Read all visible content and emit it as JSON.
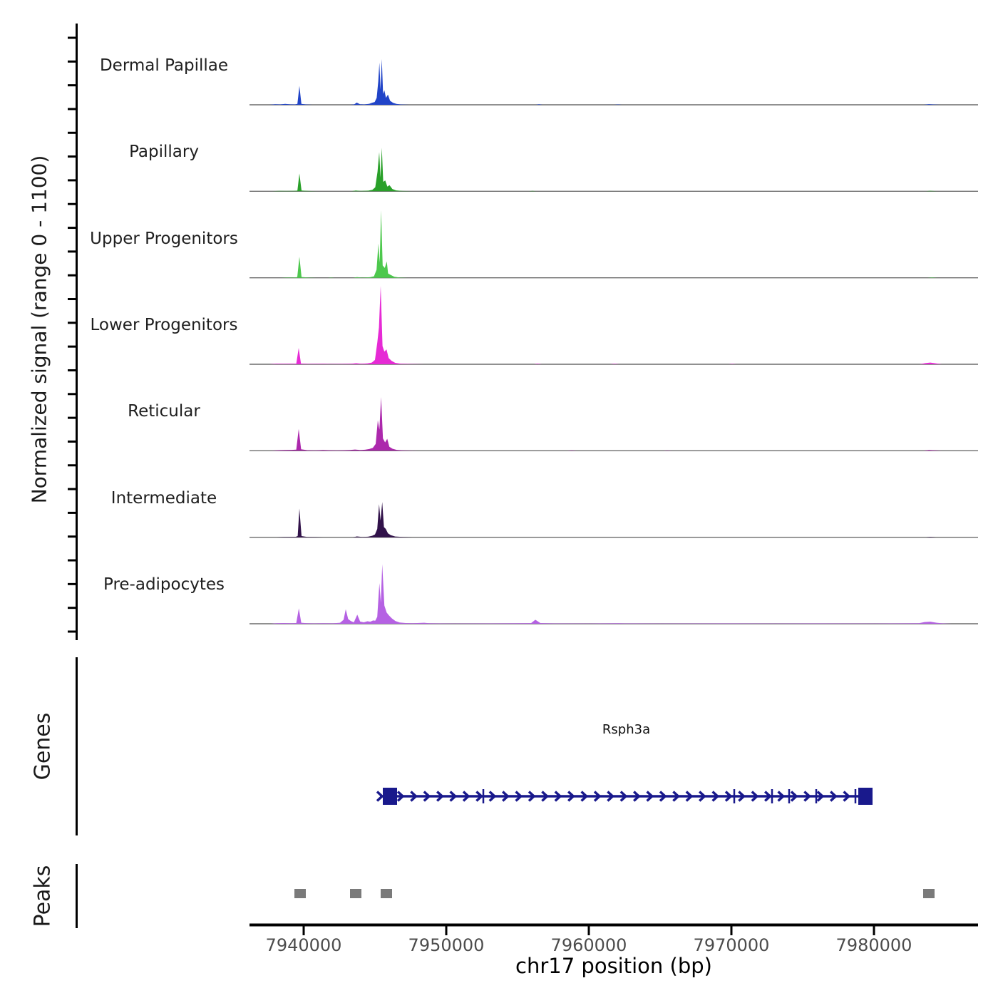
{
  "figure": {
    "y_axis_label": "Normalized signal\n(range 0 - 1100)",
    "genes_section_label": "Genes",
    "peaks_section_label": "Peaks",
    "x_axis_label": "chr17 position (bp)"
  },
  "chart_data": {
    "type": "area",
    "title": "",
    "description": "Genome browser coverage tracks over chr17 with gene model and peak calls",
    "xlabel": "chr17 position (bp)",
    "ylabel": "Normalized signal (range 0 - 1100)",
    "x_domain_bp": [
      7936200,
      7987300
    ],
    "signal_range": [
      0,
      1100
    ],
    "grid": false,
    "x_ticks": [
      {
        "bp": 7940000,
        "label": "7940000"
      },
      {
        "bp": 7950000,
        "label": "7950000"
      },
      {
        "bp": 7960000,
        "label": "7960000"
      },
      {
        "bp": 7970000,
        "label": "7970000"
      },
      {
        "bp": 7980000,
        "label": "7980000"
      }
    ],
    "tracks": [
      {
        "label": "Dermal Papillae",
        "color": "#2144C8",
        "profile": [
          [
            7937600,
            0
          ],
          [
            7938000,
            8
          ],
          [
            7938350,
            5
          ],
          [
            7938700,
            12
          ],
          [
            7939050,
            6
          ],
          [
            7939400,
            5
          ],
          [
            7939560,
            12
          ],
          [
            7939700,
            260
          ],
          [
            7939840,
            12
          ],
          [
            7940150,
            5
          ],
          [
            7940600,
            0
          ],
          [
            7943250,
            0
          ],
          [
            7943550,
            6
          ],
          [
            7943720,
            30
          ],
          [
            7943950,
            8
          ],
          [
            7944250,
            5
          ],
          [
            7944600,
            14
          ],
          [
            7944800,
            28
          ],
          [
            7944980,
            38
          ],
          [
            7945120,
            95
          ],
          [
            7945230,
            320
          ],
          [
            7945310,
            580
          ],
          [
            7945390,
            210
          ],
          [
            7945480,
            630
          ],
          [
            7945570,
            150
          ],
          [
            7945660,
            200
          ],
          [
            7945770,
            95
          ],
          [
            7945910,
            140
          ],
          [
            7946060,
            55
          ],
          [
            7946260,
            28
          ],
          [
            7946500,
            12
          ],
          [
            7946800,
            5
          ],
          [
            7947400,
            0
          ],
          [
            7956300,
            0
          ],
          [
            7956500,
            7
          ],
          [
            7956750,
            0
          ],
          [
            7961800,
            0
          ],
          [
            7962050,
            5
          ],
          [
            7962300,
            0
          ],
          [
            7983500,
            0
          ],
          [
            7983850,
            9
          ],
          [
            7984250,
            4
          ],
          [
            7984650,
            0
          ]
        ]
      },
      {
        "label": "Papillary",
        "color": "#29A029",
        "profile": [
          [
            7937800,
            0
          ],
          [
            7938300,
            6
          ],
          [
            7938800,
            4
          ],
          [
            7939250,
            6
          ],
          [
            7939560,
            9
          ],
          [
            7939700,
            245
          ],
          [
            7939850,
            10
          ],
          [
            7940350,
            4
          ],
          [
            7940900,
            0
          ],
          [
            7943350,
            0
          ],
          [
            7943650,
            10
          ],
          [
            7944000,
            4
          ],
          [
            7944550,
            9
          ],
          [
            7944820,
            20
          ],
          [
            7945020,
            55
          ],
          [
            7945180,
            270
          ],
          [
            7945300,
            540
          ],
          [
            7945390,
            190
          ],
          [
            7945480,
            600
          ],
          [
            7945580,
            130
          ],
          [
            7945720,
            150
          ],
          [
            7945870,
            65
          ],
          [
            7946020,
            85
          ],
          [
            7946220,
            32
          ],
          [
            7946480,
            12
          ],
          [
            7946950,
            4
          ],
          [
            7947600,
            0
          ],
          [
            7955800,
            0
          ],
          [
            7956050,
            5
          ],
          [
            7956300,
            0
          ],
          [
            7983650,
            0
          ],
          [
            7983950,
            7
          ],
          [
            7984400,
            0
          ]
        ]
      },
      {
        "label": "Upper Progenitors",
        "color": "#4DC84D",
        "profile": [
          [
            7938400,
            0
          ],
          [
            7938800,
            5
          ],
          [
            7939250,
            4
          ],
          [
            7939550,
            9
          ],
          [
            7939700,
            290
          ],
          [
            7939850,
            10
          ],
          [
            7940400,
            3
          ],
          [
            7940900,
            0
          ],
          [
            7941700,
            0
          ],
          [
            7941900,
            5
          ],
          [
            7942150,
            0
          ],
          [
            7943450,
            0
          ],
          [
            7943730,
            9
          ],
          [
            7944100,
            3
          ],
          [
            7944650,
            8
          ],
          [
            7944930,
            20
          ],
          [
            7945110,
            110
          ],
          [
            7945240,
            470
          ],
          [
            7945330,
            210
          ],
          [
            7945430,
            930
          ],
          [
            7945540,
            170
          ],
          [
            7945690,
            135
          ],
          [
            7945830,
            225
          ],
          [
            7945920,
            60
          ],
          [
            7946110,
            38
          ],
          [
            7946360,
            14
          ],
          [
            7946700,
            5
          ],
          [
            7947300,
            0
          ],
          [
            7983750,
            0
          ],
          [
            7984050,
            6
          ],
          [
            7984450,
            0
          ]
        ]
      },
      {
        "label": "Lower Progenitors",
        "color": "#E62AD5",
        "profile": [
          [
            7937600,
            0
          ],
          [
            7938100,
            8
          ],
          [
            7938600,
            6
          ],
          [
            7939100,
            8
          ],
          [
            7939480,
            7
          ],
          [
            7939650,
            225
          ],
          [
            7939810,
            10
          ],
          [
            7940300,
            5
          ],
          [
            7941400,
            6
          ],
          [
            7941900,
            4
          ],
          [
            7942700,
            5
          ],
          [
            7943350,
            8
          ],
          [
            7943680,
            15
          ],
          [
            7944020,
            7
          ],
          [
            7944480,
            12
          ],
          [
            7944780,
            24
          ],
          [
            7945000,
            60
          ],
          [
            7945170,
            310
          ],
          [
            7945280,
            510
          ],
          [
            7945400,
            1080
          ],
          [
            7945530,
            250
          ],
          [
            7945660,
            175
          ],
          [
            7945810,
            205
          ],
          [
            7945960,
            85
          ],
          [
            7946160,
            48
          ],
          [
            7946420,
            20
          ],
          [
            7946820,
            8
          ],
          [
            7947500,
            4
          ],
          [
            7948500,
            0
          ],
          [
            7956150,
            0
          ],
          [
            7956400,
            8
          ],
          [
            7956700,
            0
          ],
          [
            7961500,
            0
          ],
          [
            7961800,
            6
          ],
          [
            7962150,
            0
          ],
          [
            7969800,
            0
          ],
          [
            7970050,
            5
          ],
          [
            7970350,
            0
          ],
          [
            7983200,
            0
          ],
          [
            7983600,
            16
          ],
          [
            7983950,
            24
          ],
          [
            7984350,
            12
          ],
          [
            7984750,
            0
          ]
        ]
      },
      {
        "label": "Reticular",
        "color": "#AC28AC",
        "profile": [
          [
            7937700,
            0
          ],
          [
            7938200,
            8
          ],
          [
            7938700,
            10
          ],
          [
            7939150,
            12
          ],
          [
            7939480,
            15
          ],
          [
            7939650,
            300
          ],
          [
            7939820,
            20
          ],
          [
            7940250,
            8
          ],
          [
            7940800,
            5
          ],
          [
            7941350,
            10
          ],
          [
            7941750,
            8
          ],
          [
            7942350,
            5
          ],
          [
            7943250,
            10
          ],
          [
            7943600,
            17
          ],
          [
            7943950,
            10
          ],
          [
            7944300,
            14
          ],
          [
            7944600,
            24
          ],
          [
            7944850,
            40
          ],
          [
            7945050,
            95
          ],
          [
            7945200,
            420
          ],
          [
            7945310,
            290
          ],
          [
            7945430,
            740
          ],
          [
            7945560,
            170
          ],
          [
            7945710,
            115
          ],
          [
            7945860,
            165
          ],
          [
            7946010,
            55
          ],
          [
            7946230,
            28
          ],
          [
            7946520,
            12
          ],
          [
            7947050,
            5
          ],
          [
            7948000,
            0
          ],
          [
            7958500,
            0
          ],
          [
            7958800,
            5
          ],
          [
            7959150,
            0
          ],
          [
            7965200,
            0
          ],
          [
            7965500,
            4
          ],
          [
            7965850,
            0
          ],
          [
            7983450,
            0
          ],
          [
            7983850,
            11
          ],
          [
            7984350,
            5
          ],
          [
            7984750,
            0
          ]
        ]
      },
      {
        "label": "Intermediate",
        "color": "#31124A",
        "profile": [
          [
            7938100,
            0
          ],
          [
            7938600,
            5
          ],
          [
            7939100,
            6
          ],
          [
            7939430,
            6
          ],
          [
            7939580,
            16
          ],
          [
            7939700,
            395
          ],
          [
            7939850,
            16
          ],
          [
            7940250,
            5
          ],
          [
            7940800,
            3
          ],
          [
            7941400,
            0
          ],
          [
            7943450,
            0
          ],
          [
            7943730,
            11
          ],
          [
            7944100,
            5
          ],
          [
            7944520,
            8
          ],
          [
            7944800,
            20
          ],
          [
            7945000,
            38
          ],
          [
            7945160,
            115
          ],
          [
            7945290,
            455
          ],
          [
            7945390,
            230
          ],
          [
            7945510,
            485
          ],
          [
            7945630,
            140
          ],
          [
            7945760,
            115
          ],
          [
            7945910,
            55
          ],
          [
            7946110,
            28
          ],
          [
            7946420,
            10
          ],
          [
            7946950,
            4
          ],
          [
            7947650,
            0
          ],
          [
            7983650,
            0
          ],
          [
            7983950,
            7
          ],
          [
            7984350,
            0
          ]
        ]
      },
      {
        "label": "Pre-adipocytes",
        "color": "#B561E3",
        "profile": [
          [
            7937700,
            0
          ],
          [
            7938100,
            8
          ],
          [
            7938600,
            10
          ],
          [
            7939100,
            8
          ],
          [
            7939480,
            10
          ],
          [
            7939660,
            212
          ],
          [
            7939830,
            14
          ],
          [
            7940250,
            8
          ],
          [
            7940750,
            5
          ],
          [
            7941350,
            8
          ],
          [
            7942050,
            6
          ],
          [
            7942550,
            14
          ],
          [
            7942800,
            55
          ],
          [
            7942950,
            200
          ],
          [
            7943120,
            65
          ],
          [
            7943300,
            38
          ],
          [
            7943520,
            20
          ],
          [
            7943760,
            125
          ],
          [
            7943960,
            30
          ],
          [
            7944220,
            20
          ],
          [
            7944470,
            34
          ],
          [
            7944670,
            28
          ],
          [
            7944870,
            45
          ],
          [
            7945020,
            42
          ],
          [
            7945160,
            95
          ],
          [
            7945310,
            560
          ],
          [
            7945410,
            290
          ],
          [
            7945510,
            820
          ],
          [
            7945660,
            250
          ],
          [
            7945820,
            155
          ],
          [
            7945980,
            115
          ],
          [
            7946180,
            75
          ],
          [
            7946430,
            38
          ],
          [
            7946730,
            18
          ],
          [
            7947150,
            10
          ],
          [
            7947650,
            8
          ],
          [
            7948450,
            14
          ],
          [
            7948800,
            7
          ],
          [
            7949500,
            5
          ],
          [
            7950600,
            4
          ],
          [
            7953100,
            5
          ],
          [
            7955950,
            9
          ],
          [
            7956250,
            55
          ],
          [
            7956600,
            10
          ],
          [
            7957600,
            5
          ],
          [
            7960100,
            4
          ],
          [
            7962100,
            7
          ],
          [
            7962500,
            5
          ],
          [
            7965100,
            4
          ],
          [
            7970100,
            5
          ],
          [
            7973100,
            4
          ],
          [
            7976100,
            5
          ],
          [
            7980100,
            4
          ],
          [
            7983150,
            8
          ],
          [
            7983550,
            24
          ],
          [
            7983950,
            28
          ],
          [
            7984400,
            14
          ],
          [
            7984850,
            5
          ],
          [
            7985450,
            0
          ]
        ]
      }
    ],
    "gene": {
      "name": "Rsph3a",
      "strand": "+",
      "color": "#19198C",
      "start_bp": 7945350,
      "end_bp": 7979900,
      "start_exon": [
        7945550,
        7946550
      ],
      "end_exon": [
        7978900,
        7979900
      ],
      "exon_ticks": [
        7952600,
        7970200,
        7972850,
        7974050,
        7975950,
        7978700
      ],
      "arrow_spacing_bp": 920
    },
    "peaks": {
      "color": "#7a7a7a",
      "intervals": [
        [
          7939350,
          7940150
        ],
        [
          7943250,
          7944050
        ],
        [
          7945400,
          7946200
        ],
        [
          7983450,
          7984250
        ]
      ]
    }
  }
}
